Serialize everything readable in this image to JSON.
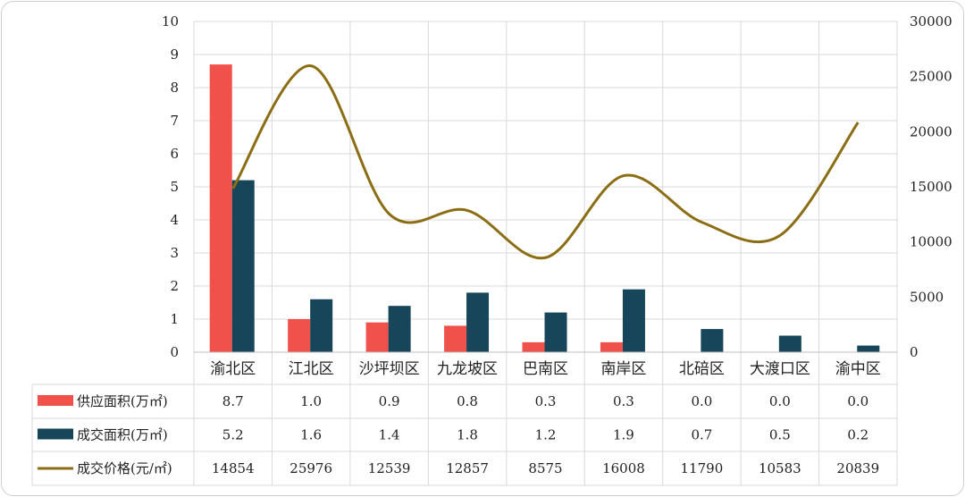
{
  "chart_data": {
    "type": "bar",
    "categories": [
      "渝北区",
      "江北区",
      "沙坪坝区",
      "九龙坡区",
      "巴南区",
      "南岸区",
      "北碚区",
      "大渡口区",
      "渝中区"
    ],
    "series": [
      {
        "name": "供应面积(万㎡)",
        "kind": "bar",
        "axis": "left",
        "color": "#f0524b",
        "values": [
          8.7,
          1.0,
          0.9,
          0.8,
          0.3,
          0.3,
          0.0,
          0.0,
          0.0
        ],
        "display": [
          "8.7",
          "1.0",
          "0.9",
          "0.8",
          "0.3",
          "0.3",
          "0.0",
          "0.0",
          "0.0"
        ]
      },
      {
        "name": "成交面积(万㎡)",
        "kind": "bar",
        "axis": "left",
        "color": "#17465a",
        "values": [
          5.2,
          1.6,
          1.4,
          1.8,
          1.2,
          1.9,
          0.7,
          0.5,
          0.2
        ],
        "display": [
          "5.2",
          "1.6",
          "1.4",
          "1.8",
          "1.2",
          "1.9",
          "0.7",
          "0.5",
          "0.2"
        ]
      },
      {
        "name": "成交价格(元/㎡)",
        "kind": "line",
        "axis": "right",
        "color": "#8b6d14",
        "values": [
          14854,
          25976,
          12539,
          12857,
          8575,
          16008,
          11790,
          10583,
          20839
        ],
        "display": [
          "14854",
          "25976",
          "12539",
          "12857",
          "8575",
          "16008",
          "11790",
          "10583",
          "20839"
        ]
      }
    ],
    "y_left": {
      "ylim": [
        0,
        10
      ],
      "ticks": [
        "0",
        "1",
        "2",
        "3",
        "4",
        "5",
        "6",
        "7",
        "8",
        "9",
        "10"
      ]
    },
    "y_right": {
      "ylim": [
        0,
        30000
      ],
      "ticks": [
        "0",
        "5000",
        "10000",
        "15000",
        "20000",
        "25000",
        "30000"
      ]
    },
    "grid": true,
    "legend": "data-table-left",
    "title": "",
    "xlabel": "",
    "ylabel": ""
  }
}
